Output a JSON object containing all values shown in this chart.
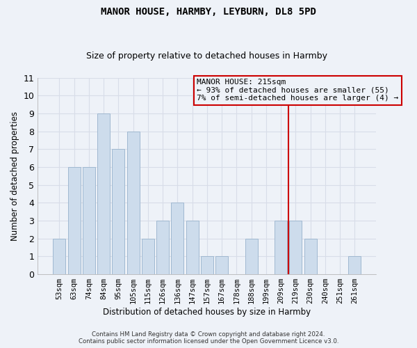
{
  "title": "MANOR HOUSE, HARMBY, LEYBURN, DL8 5PD",
  "subtitle": "Size of property relative to detached houses in Harmby",
  "xlabel": "Distribution of detached houses by size in Harmby",
  "ylabel": "Number of detached properties",
  "bar_labels": [
    "53sqm",
    "63sqm",
    "74sqm",
    "84sqm",
    "95sqm",
    "105sqm",
    "115sqm",
    "126sqm",
    "136sqm",
    "147sqm",
    "157sqm",
    "167sqm",
    "178sqm",
    "188sqm",
    "199sqm",
    "209sqm",
    "219sqm",
    "230sqm",
    "240sqm",
    "251sqm",
    "261sqm"
  ],
  "bar_values": [
    2,
    6,
    6,
    9,
    7,
    8,
    2,
    3,
    4,
    3,
    1,
    1,
    0,
    2,
    0,
    3,
    3,
    2,
    0,
    0,
    1
  ],
  "bar_color": "#cddcec",
  "bar_edgecolor": "#a0b8d0",
  "ylim": [
    0,
    11
  ],
  "yticks": [
    0,
    1,
    2,
    3,
    4,
    5,
    6,
    7,
    8,
    9,
    10,
    11
  ],
  "vline_x_index": 15.5,
  "vline_color": "#cc0000",
  "annotation_text": "MANOR HOUSE: 215sqm\n← 93% of detached houses are smaller (55)\n7% of semi-detached houses are larger (4) →",
  "annotation_box_color": "#cc0000",
  "footer": "Contains HM Land Registry data © Crown copyright and database right 2024.\nContains public sector information licensed under the Open Government Licence v3.0.",
  "background_color": "#eef2f8",
  "grid_color": "#d8dde8",
  "title_fontsize": 10,
  "subtitle_fontsize": 9
}
